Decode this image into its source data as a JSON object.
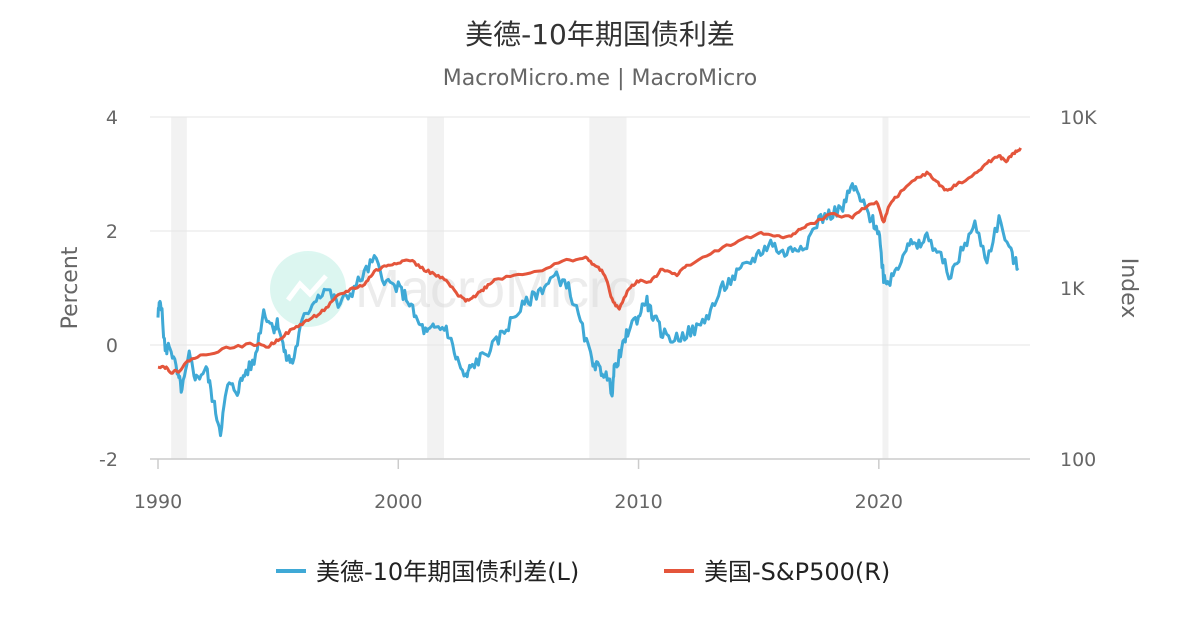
{
  "chart_data": {
    "type": "line",
    "title": "美德-10年期国债利差",
    "subtitle": "MacroMicro.me | MacroMicro",
    "watermark": "MacroMicro",
    "x_ticks": [
      "1990",
      "2000",
      "2010",
      "2020"
    ],
    "x_range": [
      1990,
      2026
    ],
    "left_axis": {
      "label": "Percent",
      "range": [
        -2,
        4
      ],
      "ticks": [
        "4",
        "2",
        "0",
        "-2"
      ],
      "tick_values": [
        4,
        2,
        0,
        -2
      ]
    },
    "right_axis": {
      "label": "Index",
      "scale": "log",
      "range": [
        100,
        10000
      ],
      "ticks": [
        "10K",
        "1K",
        "100"
      ],
      "tick_values": [
        10000,
        1000,
        100
      ]
    },
    "recessions": [
      [
        1990.55,
        1991.2
      ],
      [
        2001.2,
        2001.9
      ],
      [
        2007.95,
        2009.5
      ],
      [
        2020.15,
        2020.4
      ]
    ],
    "colors": {
      "spread": "#3fa9d6",
      "sp500": "#e4553b",
      "recession": "#f2f2f2",
      "watermark": "#b2ede0"
    },
    "series": [
      {
        "name": "美德-10年期国债利差(L)",
        "axis": "left",
        "x": [
          1990.0,
          1990.1,
          1990.3,
          1990.5,
          1990.8,
          1991.0,
          1991.3,
          1991.6,
          1992.0,
          1992.3,
          1992.6,
          1992.9,
          1993.3,
          1993.6,
          1994.0,
          1994.4,
          1994.8,
          1995.0,
          1995.3,
          1995.6,
          1996.0,
          1996.5,
          1997.0,
          1997.5,
          1998.0,
          1998.5,
          1999.0,
          1999.5,
          2000.0,
          2000.4,
          2000.8,
          2001.2,
          2001.5,
          2002.0,
          2002.4,
          2002.8,
          2003.0,
          2003.5,
          2004.0,
          2004.5,
          2005.0,
          2005.5,
          2006.0,
          2006.5,
          2007.0,
          2007.5,
          2008.0,
          2008.3,
          2008.6,
          2008.9,
          2009.0,
          2009.3,
          2009.6,
          2010.0,
          2010.3,
          2010.6,
          2011.0,
          2011.5,
          2012.0,
          2012.5,
          2013.0,
          2013.5,
          2014.0,
          2014.5,
          2015.0,
          2015.5,
          2016.0,
          2016.5,
          2017.0,
          2017.5,
          2018.0,
          2018.5,
          2018.9,
          2019.3,
          2019.7,
          2020.0,
          2020.2,
          2020.4,
          2020.8,
          2021.2,
          2021.6,
          2022.0,
          2022.5,
          2023.0,
          2023.5,
          2024.0,
          2024.5,
          2025.0,
          2025.5,
          2025.8
        ],
        "values": [
          0.5,
          0.85,
          -0.1,
          0.0,
          -0.5,
          -0.8,
          -0.2,
          -0.6,
          -0.4,
          -1.0,
          -1.5,
          -0.7,
          -0.8,
          -0.5,
          -0.3,
          0.6,
          0.3,
          0.4,
          -0.2,
          -0.3,
          0.4,
          0.8,
          1.0,
          0.7,
          0.9,
          1.2,
          1.5,
          1.1,
          1.0,
          0.8,
          0.4,
          0.2,
          0.3,
          0.3,
          -0.2,
          -0.6,
          -0.4,
          -0.2,
          0.0,
          0.3,
          0.6,
          0.8,
          1.0,
          1.2,
          1.1,
          0.5,
          -0.2,
          -0.4,
          -0.5,
          -0.8,
          -0.4,
          -0.1,
          0.3,
          0.5,
          0.8,
          0.5,
          0.2,
          0.1,
          0.2,
          0.3,
          0.6,
          1.0,
          1.2,
          1.4,
          1.6,
          1.8,
          1.6,
          1.7,
          1.8,
          2.2,
          2.3,
          2.4,
          2.8,
          2.5,
          2.2,
          2.0,
          1.2,
          1.1,
          1.4,
          1.8,
          1.7,
          1.9,
          1.6,
          1.2,
          1.7,
          2.1,
          1.5,
          2.2,
          1.6,
          1.35
        ]
      },
      {
        "name": "美国-S&P500(R)",
        "axis": "right",
        "x": [
          1990.0,
          1990.3,
          1990.6,
          1990.9,
          1991.3,
          1992.0,
          1993.0,
          1994.0,
          1994.6,
          1995.0,
          1995.5,
          1996.0,
          1996.5,
          1997.0,
          1997.5,
          1998.0,
          1998.6,
          1999.0,
          1999.5,
          2000.0,
          2000.5,
          2001.0,
          2001.5,
          2002.0,
          2002.5,
          2002.8,
          2003.2,
          2003.6,
          2004.0,
          2005.0,
          2006.0,
          2007.0,
          2007.8,
          2008.2,
          2008.6,
          2008.9,
          2009.2,
          2009.6,
          2010.0,
          2010.5,
          2011.0,
          2011.6,
          2012.0,
          2013.0,
          2014.0,
          2015.0,
          2015.6,
          2016.1,
          2016.6,
          2017.0,
          2018.0,
          2018.9,
          2019.3,
          2019.9,
          2020.2,
          2020.4,
          2020.8,
          2021.5,
          2022.0,
          2022.4,
          2022.8,
          2023.2,
          2024.0,
          2024.5,
          2025.0,
          2025.3,
          2025.6,
          2025.9
        ],
        "values": [
          350,
          345,
          320,
          330,
          380,
          410,
          450,
          470,
          455,
          500,
          560,
          620,
          680,
          760,
          900,
          980,
          1050,
          1250,
          1350,
          1420,
          1460,
          1300,
          1200,
          1100,
          900,
          850,
          900,
          1000,
          1120,
          1200,
          1280,
          1450,
          1500,
          1350,
          1200,
          850,
          750,
          1000,
          1100,
          1080,
          1300,
          1200,
          1350,
          1600,
          1850,
          2080,
          2050,
          1950,
          2150,
          2300,
          2700,
          2600,
          2900,
          3200,
          2400,
          3000,
          3500,
          4300,
          4700,
          4200,
          3700,
          4000,
          4600,
          5400,
          5900,
          5500,
          6100,
          6600
        ]
      }
    ]
  }
}
